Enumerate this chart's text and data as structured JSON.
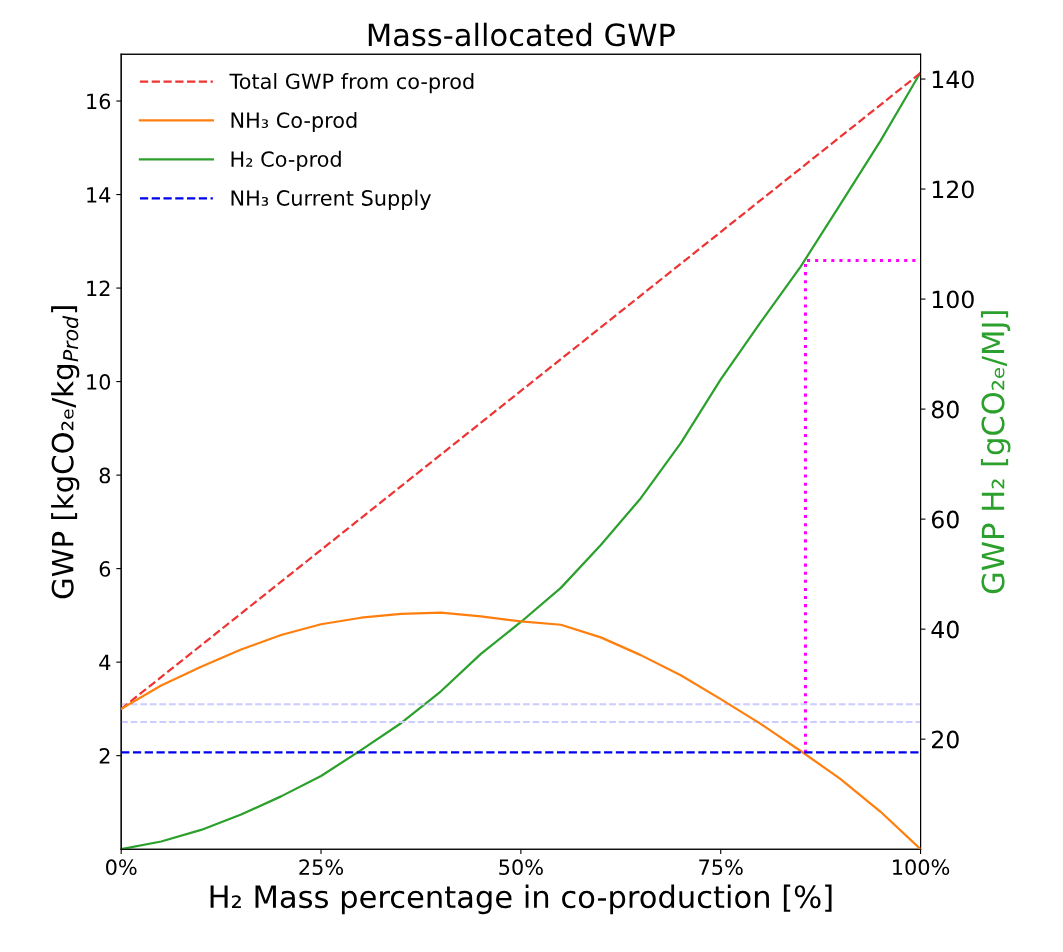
{
  "chart_data": {
    "type": "line",
    "title": "Mass-allocated GWP",
    "xlabel": "H₂ Mass percentage in co-production [%]",
    "ylabel": "GWP [kgCO₂ₑ/kg$_{Prod}$]",
    "y2label": "GWP H₂ [gCO₂ₑ/MJ]",
    "x": [
      0,
      5,
      10,
      15,
      20,
      25,
      30,
      35,
      40,
      45,
      50,
      55,
      60,
      65,
      70,
      75,
      80,
      85,
      90,
      95,
      100
    ],
    "series": [
      {
        "name": "Total GWP from co-prod",
        "color": "#ee3333",
        "line_style": "dashed",
        "x": [
          0,
          50,
          100
        ],
        "values": [
          3.0,
          9.8,
          16.6
        ]
      },
      {
        "name": "NH₃ Co-prod",
        "color": "#ff7f0e",
        "line_style": "solid",
        "values": [
          3.0,
          3.5,
          3.9,
          4.27,
          4.58,
          4.81,
          4.95,
          5.03,
          5.06,
          4.98,
          4.87,
          4.8,
          4.53,
          4.15,
          3.72,
          3.21,
          2.68,
          2.1,
          1.5,
          0.8,
          0.0
        ]
      },
      {
        "name": "H₂ Co-prod",
        "color": "#2ca02c",
        "line_style": "solid",
        "axis": "y2",
        "values": [
          0,
          1.4,
          3.5,
          6.3,
          9.6,
          13.3,
          18.0,
          22.9,
          28.7,
          35.5,
          41.3,
          47.5,
          55.3,
          63.8,
          73.8,
          85.4,
          95.8,
          105.9,
          117.3,
          128.8,
          141.2
        ]
      },
      {
        "name": "NH₃ Current Supply",
        "color": "#0000ee",
        "line_style": "dashed",
        "x": [
          0,
          100
        ],
        "values": [
          2.07,
          2.07
        ]
      },
      {
        "color": "#ff00ff",
        "line_style": "dotted",
        "axis": "y2",
        "x": [
          85.6,
          85.6,
          100
        ],
        "values": [
          17.5,
          107,
          107
        ]
      }
    ],
    "ref_lines": [
      {
        "axis": "y",
        "value": 3.1,
        "color": "#ccccff",
        "line_style": "dashed"
      },
      {
        "axis": "y",
        "value": 2.72,
        "color": "#ccccff",
        "line_style": "dashed"
      }
    ],
    "xlim": [
      0,
      100
    ],
    "xticks": [
      {
        "value": 0,
        "label": "0%"
      },
      {
        "value": 25,
        "label": "25%"
      },
      {
        "value": 50,
        "label": "50%"
      },
      {
        "value": 75,
        "label": "75%"
      },
      {
        "value": 100,
        "label": "100%"
      }
    ],
    "ylim": [
      0,
      17
    ],
    "yticks": [
      2,
      4,
      6,
      8,
      10,
      12,
      14,
      16
    ],
    "y2lim": [
      0,
      144.5
    ],
    "y2ticks": [
      20,
      40,
      60,
      80,
      100,
      120,
      140
    ],
    "legend": "top left",
    "grid": false,
    "marker": "none"
  }
}
